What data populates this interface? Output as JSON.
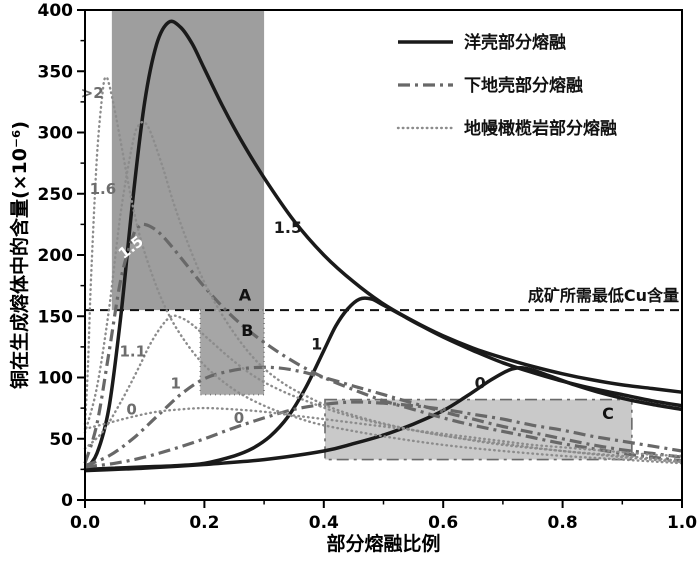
{
  "figure": {
    "background": "#ffffff"
  },
  "chart_data": {
    "type": "line",
    "title": "",
    "xlabel": "部分熔融比例",
    "ylabel": "铜在生成熔体中的含量(×10⁻⁶)",
    "xlim": [
      0,
      1
    ],
    "ylim": [
      0,
      400
    ],
    "grid": false,
    "x_tick_labels": [
      "0.0",
      "0.2",
      "0.4",
      "0.6",
      "0.8",
      "1.0"
    ],
    "x_major_ticks": [
      0,
      0.2,
      0.4,
      0.6,
      0.8,
      1.0
    ],
    "x_minor_step": 0.1,
    "y_major_ticks": [
      0,
      50,
      100,
      150,
      200,
      250,
      300,
      350,
      400
    ],
    "y_minor_step": 25,
    "legend": {
      "position": "top-right",
      "frame": false,
      "entries": [
        {
          "label": "洋壳部分熔融",
          "style": "solid",
          "color": "#1a1a1a",
          "width": 3.5
        },
        {
          "label": "下地壳部分熔融",
          "style": "dashdot",
          "color": "#686868",
          "width": 3.2
        },
        {
          "label": "地幔橄榄岩部分熔融",
          "style": "dotted",
          "color": "#8c8c8c",
          "width": 2.4
        }
      ]
    },
    "threshold": {
      "y": 155,
      "label": "成矿所需最低Cu含量",
      "style": "dashed",
      "color": "#111111"
    },
    "regions": [
      {
        "id": "A",
        "x0": 0.045,
        "x1": 0.3,
        "y0": 155,
        "y1": 400,
        "fill": "#9e9e9e",
        "border": "none",
        "border_color": "#9e9e9e"
      },
      {
        "id": "B",
        "x0": 0.193,
        "x1": 0.3,
        "y0": 86,
        "y1": 155,
        "fill": "#a6a6a6",
        "border": "dotted",
        "border_color": "#444444"
      },
      {
        "id": "C",
        "x0": 0.402,
        "x1": 0.916,
        "y0": 33,
        "y1": 82,
        "fill": "#c9c9c9",
        "border": "dashdot",
        "border_color": "#6a6a6a"
      }
    ],
    "series": [
      {
        "name": "洋壳部分熔融 1.5",
        "group": "oceanic-crust",
        "curve_label": "1.5",
        "style": "solid",
        "color": "#1a1a1a",
        "width": 3.5,
        "points": [
          [
            0,
            25
          ],
          [
            0.02,
            38
          ],
          [
            0.04,
            75
          ],
          [
            0.06,
            150
          ],
          [
            0.08,
            245
          ],
          [
            0.1,
            325
          ],
          [
            0.12,
            372
          ],
          [
            0.14,
            390
          ],
          [
            0.16,
            386
          ],
          [
            0.18,
            372
          ],
          [
            0.2,
            352
          ],
          [
            0.23,
            322
          ],
          [
            0.26,
            295
          ],
          [
            0.3,
            263
          ],
          [
            0.35,
            228
          ],
          [
            0.4,
            200
          ],
          [
            0.45,
            178
          ],
          [
            0.5,
            160
          ],
          [
            0.55,
            146
          ],
          [
            0.6,
            134
          ],
          [
            0.65,
            124
          ],
          [
            0.7,
            116
          ],
          [
            0.75,
            109
          ],
          [
            0.8,
            103
          ],
          [
            0.85,
            98
          ],
          [
            0.9,
            94
          ],
          [
            0.95,
            91
          ],
          [
            1.0,
            88
          ]
        ]
      },
      {
        "name": "洋壳部分熔融 1",
        "group": "oceanic-crust",
        "curve_label": "1",
        "style": "solid",
        "color": "#1a1a1a",
        "width": 3.5,
        "points": [
          [
            0,
            25
          ],
          [
            0.05,
            26
          ],
          [
            0.1,
            27
          ],
          [
            0.15,
            28
          ],
          [
            0.2,
            30
          ],
          [
            0.25,
            36
          ],
          [
            0.28,
            42
          ],
          [
            0.31,
            52
          ],
          [
            0.34,
            68
          ],
          [
            0.37,
            92
          ],
          [
            0.4,
            122
          ],
          [
            0.42,
            142
          ],
          [
            0.44,
            156
          ],
          [
            0.46,
            164
          ],
          [
            0.48,
            164
          ],
          [
            0.5,
            159
          ],
          [
            0.53,
            151
          ],
          [
            0.56,
            143
          ],
          [
            0.6,
            133
          ],
          [
            0.65,
            122
          ],
          [
            0.7,
            112
          ],
          [
            0.75,
            104
          ],
          [
            0.8,
            97
          ],
          [
            0.85,
            91
          ],
          [
            0.9,
            86
          ],
          [
            0.95,
            81
          ],
          [
            1.0,
            77
          ]
        ]
      },
      {
        "name": "洋壳部分熔融 0",
        "group": "oceanic-crust",
        "curve_label": "0",
        "style": "solid",
        "color": "#1a1a1a",
        "width": 3.5,
        "points": [
          [
            0,
            24
          ],
          [
            0.1,
            26
          ],
          [
            0.2,
            29
          ],
          [
            0.3,
            33
          ],
          [
            0.4,
            40
          ],
          [
            0.45,
            46
          ],
          [
            0.5,
            53
          ],
          [
            0.55,
            62
          ],
          [
            0.6,
            73
          ],
          [
            0.64,
            85
          ],
          [
            0.68,
            98
          ],
          [
            0.71,
            106
          ],
          [
            0.73,
            108
          ],
          [
            0.75,
            106
          ],
          [
            0.78,
            101
          ],
          [
            0.82,
            94
          ],
          [
            0.86,
            88
          ],
          [
            0.9,
            83
          ],
          [
            0.95,
            78
          ],
          [
            1.0,
            74
          ]
        ]
      },
      {
        "name": "下地壳部分熔融 1.5",
        "group": "lower-crust",
        "curve_label": "1.5",
        "style": "dashdot",
        "color": "#686868",
        "width": 3.2,
        "points": [
          [
            0,
            30
          ],
          [
            0.02,
            62
          ],
          [
            0.04,
            120
          ],
          [
            0.06,
            180
          ],
          [
            0.08,
            215
          ],
          [
            0.09,
            223
          ],
          [
            0.1,
            225
          ],
          [
            0.12,
            220
          ],
          [
            0.14,
            210
          ],
          [
            0.17,
            192
          ],
          [
            0.2,
            174
          ],
          [
            0.24,
            153
          ],
          [
            0.28,
            136
          ],
          [
            0.32,
            122
          ],
          [
            0.36,
            110
          ],
          [
            0.4,
            100
          ],
          [
            0.45,
            90
          ],
          [
            0.5,
            81
          ],
          [
            0.55,
            74
          ],
          [
            0.6,
            67
          ],
          [
            0.65,
            61
          ],
          [
            0.7,
            56
          ],
          [
            0.75,
            51
          ],
          [
            0.8,
            46
          ],
          [
            0.85,
            42
          ],
          [
            0.9,
            38
          ],
          [
            0.95,
            35
          ],
          [
            1.0,
            32
          ]
        ]
      },
      {
        "name": "下地壳部分熔融 1",
        "group": "lower-crust",
        "curve_label": "1",
        "style": "dashdot",
        "color": "#686868",
        "width": 3.2,
        "points": [
          [
            0,
            28
          ],
          [
            0.04,
            36
          ],
          [
            0.08,
            50
          ],
          [
            0.12,
            68
          ],
          [
            0.16,
            86
          ],
          [
            0.2,
            99
          ],
          [
            0.24,
            105
          ],
          [
            0.28,
            108
          ],
          [
            0.32,
            108
          ],
          [
            0.36,
            105
          ],
          [
            0.4,
            100
          ],
          [
            0.45,
            93
          ],
          [
            0.5,
            86
          ],
          [
            0.55,
            79
          ],
          [
            0.6,
            72
          ],
          [
            0.65,
            66
          ],
          [
            0.7,
            60
          ],
          [
            0.75,
            55
          ],
          [
            0.8,
            50
          ],
          [
            0.85,
            45
          ],
          [
            0.9,
            41
          ],
          [
            0.95,
            38
          ],
          [
            1.0,
            35
          ]
        ]
      },
      {
        "name": "下地壳部分熔融 0",
        "group": "lower-crust",
        "curve_label": "0",
        "style": "dashdot",
        "color": "#686868",
        "width": 3.2,
        "points": [
          [
            0,
            27
          ],
          [
            0.05,
            30
          ],
          [
            0.1,
            35
          ],
          [
            0.15,
            42
          ],
          [
            0.2,
            50
          ],
          [
            0.25,
            59
          ],
          [
            0.3,
            67
          ],
          [
            0.35,
            74
          ],
          [
            0.4,
            78
          ],
          [
            0.45,
            80
          ],
          [
            0.5,
            79
          ],
          [
            0.55,
            77
          ],
          [
            0.6,
            74
          ],
          [
            0.65,
            70
          ],
          [
            0.7,
            66
          ],
          [
            0.75,
            61
          ],
          [
            0.8,
            57
          ],
          [
            0.85,
            52
          ],
          [
            0.9,
            48
          ],
          [
            0.95,
            44
          ],
          [
            1.0,
            40
          ]
        ]
      },
      {
        "name": "地幔橄榄岩部分熔融 >2",
        "group": "mantle-peridotite",
        "curve_label": ">2",
        "style": "dotted",
        "color": "#8c8c8c",
        "width": 2.4,
        "points": [
          [
            0,
            62
          ],
          [
            0.005,
            110
          ],
          [
            0.01,
            180
          ],
          [
            0.02,
            280
          ],
          [
            0.03,
            335
          ],
          [
            0.035,
            345
          ],
          [
            0.04,
            340
          ],
          [
            0.05,
            318
          ],
          [
            0.06,
            292
          ],
          [
            0.08,
            240
          ],
          [
            0.1,
            202
          ],
          [
            0.13,
            162
          ],
          [
            0.16,
            135
          ],
          [
            0.2,
            110
          ],
          [
            0.25,
            90
          ],
          [
            0.3,
            77
          ],
          [
            0.35,
            68
          ],
          [
            0.4,
            61
          ],
          [
            0.5,
            52
          ],
          [
            0.6,
            45
          ],
          [
            0.7,
            40
          ],
          [
            0.8,
            36
          ],
          [
            0.9,
            33
          ],
          [
            1.0,
            30
          ]
        ]
      },
      {
        "name": "地幔橄榄岩部分熔融 1.6",
        "group": "mantle-peridotite",
        "curve_label": "1.6",
        "style": "dotted",
        "color": "#8c8c8c",
        "width": 2.4,
        "points": [
          [
            0,
            55
          ],
          [
            0.02,
            92
          ],
          [
            0.04,
            155
          ],
          [
            0.06,
            235
          ],
          [
            0.08,
            292
          ],
          [
            0.09,
            306
          ],
          [
            0.1,
            308
          ],
          [
            0.11,
            300
          ],
          [
            0.13,
            272
          ],
          [
            0.15,
            240
          ],
          [
            0.18,
            200
          ],
          [
            0.21,
            168
          ],
          [
            0.25,
            136
          ],
          [
            0.29,
            112
          ],
          [
            0.33,
            96
          ],
          [
            0.37,
            85
          ],
          [
            0.42,
            74
          ],
          [
            0.48,
            65
          ],
          [
            0.55,
            57
          ],
          [
            0.62,
            51
          ],
          [
            0.7,
            45
          ],
          [
            0.8,
            40
          ],
          [
            0.9,
            35
          ],
          [
            1.0,
            31
          ]
        ]
      },
      {
        "name": "地幔橄榄岩部分熔融 1.1",
        "group": "mantle-peridotite",
        "curve_label": "1.1",
        "style": "dotted",
        "color": "#8c8c8c",
        "width": 2.4,
        "points": [
          [
            0,
            42
          ],
          [
            0.03,
            56
          ],
          [
            0.06,
            80
          ],
          [
            0.09,
            108
          ],
          [
            0.11,
            128
          ],
          [
            0.13,
            143
          ],
          [
            0.145,
            150
          ],
          [
            0.16,
            149
          ],
          [
            0.18,
            143
          ],
          [
            0.21,
            130
          ],
          [
            0.25,
            113
          ],
          [
            0.29,
            99
          ],
          [
            0.33,
            89
          ],
          [
            0.37,
            81
          ],
          [
            0.42,
            72
          ],
          [
            0.48,
            64
          ],
          [
            0.55,
            57
          ],
          [
            0.62,
            51
          ],
          [
            0.7,
            46
          ],
          [
            0.8,
            40
          ],
          [
            0.9,
            36
          ],
          [
            1.0,
            32
          ]
        ]
      },
      {
        "name": "地幔橄榄岩部分熔融 0",
        "group": "mantle-peridotite",
        "curve_label": "0",
        "style": "dotted",
        "color": "#8c8c8c",
        "width": 2.4,
        "points": [
          [
            0,
            58
          ],
          [
            0.04,
            63
          ],
          [
            0.08,
            68
          ],
          [
            0.12,
            72
          ],
          [
            0.16,
            74
          ],
          [
            0.2,
            75
          ],
          [
            0.25,
            74
          ],
          [
            0.3,
            72
          ],
          [
            0.35,
            69
          ],
          [
            0.4,
            66
          ],
          [
            0.45,
            63
          ],
          [
            0.5,
            60
          ],
          [
            0.55,
            57
          ],
          [
            0.6,
            54
          ],
          [
            0.65,
            51
          ],
          [
            0.7,
            48
          ],
          [
            0.75,
            45
          ],
          [
            0.8,
            43
          ],
          [
            0.85,
            41
          ],
          [
            0.9,
            39
          ],
          [
            0.95,
            37
          ],
          [
            1.0,
            36
          ]
        ]
      }
    ],
    "annotations": [
      {
        "text": ">2",
        "x": 0.012,
        "y": 328,
        "color": "#6d6d6d",
        "size": 15,
        "rot": 0
      },
      {
        "text": "1.6",
        "x": 0.03,
        "y": 250,
        "color": "#6d6d6d",
        "size": 15,
        "rot": 0
      },
      {
        "text": "1.5",
        "x": 0.082,
        "y": 203,
        "color": "#ffffff",
        "size": 15,
        "rot": -38
      },
      {
        "text": "1.1",
        "x": 0.08,
        "y": 117,
        "color": "#6d6d6d",
        "size": 15,
        "rot": 0
      },
      {
        "text": "0",
        "x": 0.078,
        "y": 70,
        "color": "#6d6d6d",
        "size": 15,
        "rot": 0
      },
      {
        "text": "1",
        "x": 0.152,
        "y": 91,
        "color": "#6d6d6d",
        "size": 15,
        "rot": 0
      },
      {
        "text": "0",
        "x": 0.258,
        "y": 63,
        "color": "#6d6d6d",
        "size": 15,
        "rot": 0
      },
      {
        "text": "1.5",
        "x": 0.34,
        "y": 218,
        "color": "#1a1a1a",
        "size": 16,
        "rot": 0
      },
      {
        "text": "1",
        "x": 0.388,
        "y": 123,
        "color": "#1a1a1a",
        "size": 16,
        "rot": 0
      },
      {
        "text": "0",
        "x": 0.662,
        "y": 91,
        "color": "#1a1a1a",
        "size": 16,
        "rot": 0
      },
      {
        "text": "A",
        "x": 0.268,
        "y": 163,
        "color": "#111111",
        "size": 16,
        "rot": 0
      },
      {
        "text": "B",
        "x": 0.272,
        "y": 134,
        "color": "#111111",
        "size": 16,
        "rot": 0
      },
      {
        "text": "C",
        "x": 0.876,
        "y": 66,
        "color": "#111111",
        "size": 16,
        "rot": 0
      }
    ]
  }
}
